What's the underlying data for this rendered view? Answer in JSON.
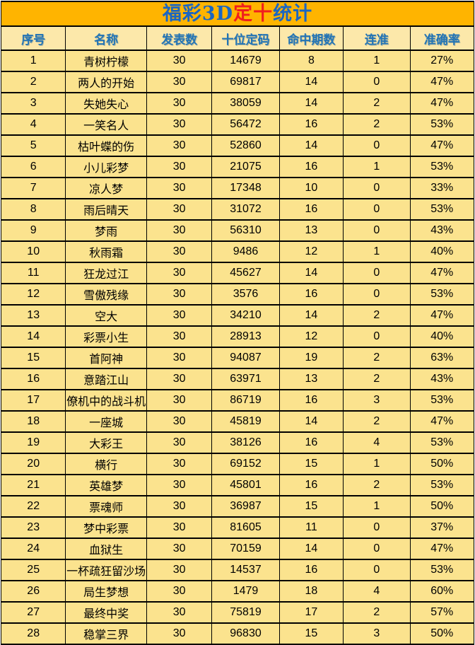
{
  "title": {
    "part_blue1": "福彩3D",
    "part_red": "定十",
    "part_blue2": "统计"
  },
  "colors": {
    "title_bar_bg": "#FFB400",
    "title_blue": "#1A66C2",
    "title_red": "#F01E1E",
    "header_bg": "#FCE8AA",
    "header_text": "#2374B5",
    "row_bg": "#FBE38E",
    "border": "#000000",
    "cell_text": "#000000"
  },
  "chart_data": {
    "type": "table",
    "title": "福彩3D定十统计",
    "columns": [
      "序号",
      "名称",
      "发表数",
      "十位定码",
      "命中期数",
      "连准",
      "准确率"
    ],
    "column_keys": [
      "index",
      "name",
      "published",
      "tens_code",
      "hit_periods",
      "consecutive",
      "accuracy"
    ],
    "rows": [
      [
        "1",
        "青树柠檬",
        "30",
        "14679",
        "8",
        "1",
        "27%"
      ],
      [
        "2",
        "两人的开始",
        "30",
        "69817",
        "14",
        "0",
        "47%"
      ],
      [
        "3",
        "失她失心",
        "30",
        "38059",
        "14",
        "2",
        "47%"
      ],
      [
        "4",
        "一笑名人",
        "30",
        "56472",
        "16",
        "2",
        "53%"
      ],
      [
        "5",
        "枯叶蝶的伤",
        "30",
        "52860",
        "14",
        "0",
        "47%"
      ],
      [
        "6",
        "小儿彩梦",
        "30",
        "21075",
        "16",
        "1",
        "53%"
      ],
      [
        "7",
        "凉人梦",
        "30",
        "17348",
        "10",
        "0",
        "33%"
      ],
      [
        "8",
        "雨后晴天",
        "30",
        "31072",
        "16",
        "0",
        "53%"
      ],
      [
        "9",
        "梦雨",
        "30",
        "56310",
        "13",
        "0",
        "43%"
      ],
      [
        "10",
        "秋雨霜",
        "30",
        "9486",
        "12",
        "1",
        "40%"
      ],
      [
        "11",
        "狂龙过江",
        "30",
        "45627",
        "14",
        "0",
        "47%"
      ],
      [
        "12",
        "雪傲残缘",
        "30",
        "3576",
        "16",
        "0",
        "53%"
      ],
      [
        "13",
        "空大",
        "30",
        "34210",
        "14",
        "2",
        "47%"
      ],
      [
        "14",
        "彩票小生",
        "30",
        "28913",
        "12",
        "0",
        "40%"
      ],
      [
        "15",
        "首阿神",
        "30",
        "94087",
        "19",
        "2",
        "63%"
      ],
      [
        "16",
        "意踏江山",
        "30",
        "63971",
        "13",
        "2",
        "43%"
      ],
      [
        "17",
        "僚机中的战斗机",
        "30",
        "86719",
        "16",
        "3",
        "53%"
      ],
      [
        "18",
        "一座城",
        "30",
        "45819",
        "14",
        "2",
        "47%"
      ],
      [
        "19",
        "大彩王",
        "30",
        "38126",
        "16",
        "4",
        "53%"
      ],
      [
        "20",
        "横行",
        "30",
        "69152",
        "15",
        "1",
        "50%"
      ],
      [
        "21",
        "英雄梦",
        "30",
        "45801",
        "16",
        "2",
        "53%"
      ],
      [
        "22",
        "票魂师",
        "30",
        "36987",
        "15",
        "1",
        "50%"
      ],
      [
        "23",
        "梦中彩票",
        "30",
        "81605",
        "11",
        "0",
        "37%"
      ],
      [
        "24",
        "血狱生",
        "30",
        "70159",
        "14",
        "0",
        "47%"
      ],
      [
        "25",
        "一杯疏狂留沙场",
        "30",
        "14537",
        "16",
        "0",
        "53%"
      ],
      [
        "26",
        "局生梦想",
        "30",
        "1479",
        "18",
        "4",
        "60%"
      ],
      [
        "27",
        "最终中奖",
        "30",
        "75819",
        "17",
        "2",
        "57%"
      ],
      [
        "28",
        "稳掌三界",
        "30",
        "96830",
        "15",
        "3",
        "50%"
      ]
    ]
  }
}
